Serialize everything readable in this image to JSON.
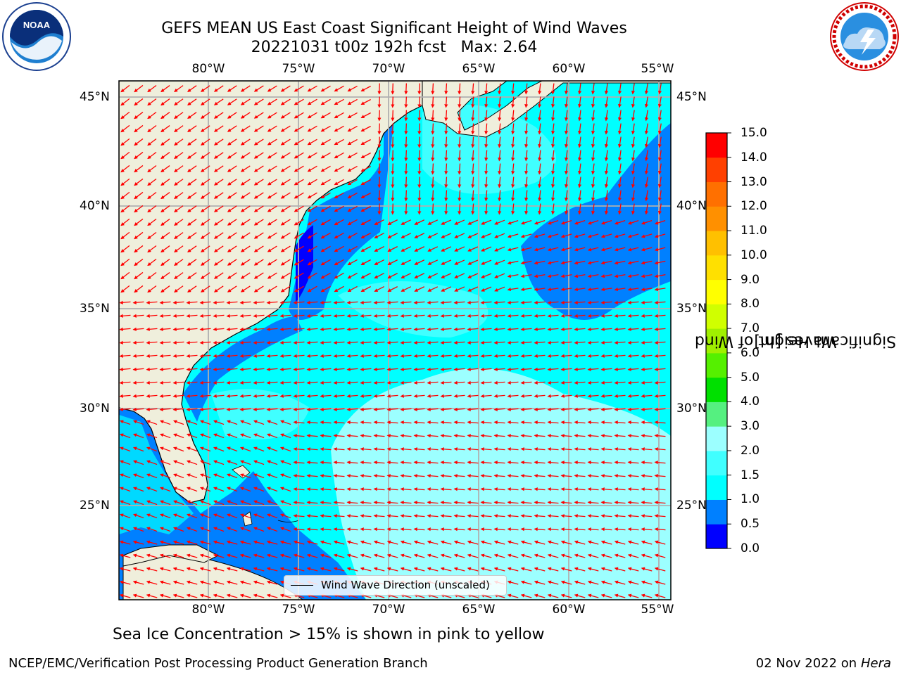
{
  "header": {
    "title_line1": "GEFS MEAN US East Coast Significant Height of Wind Waves",
    "title_line2": "20221031 t00z 192h fcst   Max: 2.64"
  },
  "logos": {
    "left": "noaa-logo",
    "right": "nws-logo"
  },
  "map": {
    "lon_labels": [
      "80°W",
      "75°W",
      "70°W",
      "65°W",
      "60°W",
      "55°W"
    ],
    "lat_labels": [
      "45°N",
      "40°N",
      "35°N",
      "30°N",
      "25°N"
    ],
    "legend_label": "Wind Wave Direction (unscaled)",
    "arrow_color": "#ff0000",
    "land_color": "#efefdc"
  },
  "colorbar": {
    "title": "Significant Height of Wind\nWaves [m]",
    "ticks": [
      "0.0",
      "0.5",
      "1.0",
      "1.5",
      "2.0",
      "3.0",
      "4.0",
      "5.0",
      "6.0",
      "7.0",
      "8.0",
      "9.0",
      "10.0",
      "11.0",
      "12.0",
      "13.0",
      "14.0",
      "15.0"
    ],
    "colors": [
      "#0000ff",
      "#0080ff",
      "#00ffff",
      "#40ffff",
      "#9cffff",
      "#55f080",
      "#00e000",
      "#55f000",
      "#a0f000",
      "#d0ff00",
      "#ffff00",
      "#ffe000",
      "#ffc000",
      "#ff9000",
      "#ff7000",
      "#ff4000",
      "#ff0000"
    ]
  },
  "note": "Sea Ice Concentration > 15% is shown in pink to yellow",
  "footer": {
    "left": "NCEP/EMC/Verification Post Processing Product Generation Branch",
    "right_date": "02 Nov 2022 on",
    "right_host": "Hera"
  }
}
